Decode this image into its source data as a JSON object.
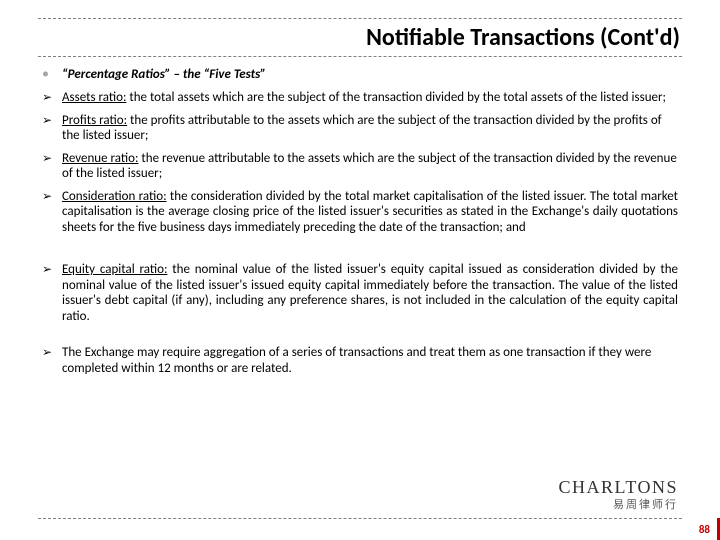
{
  "accent_color": "#c00000",
  "title": "Notifiable Transactions (Cont'd)",
  "bullets": [
    {
      "marker": "dot",
      "style": "bi",
      "lead": "",
      "body": "“Percentage Ratios” – the “Five Tests”"
    },
    {
      "marker": "arrow",
      "style": "",
      "lead": "Assets ratio:",
      "body": " the total assets which are the subject of the transaction divided by the total assets of the listed issuer;"
    },
    {
      "marker": "arrow",
      "style": "",
      "lead": "Profits ratio:",
      "body": " the profits attributable to the assets which are the subject of the transaction divided by the profits of the listed issuer;"
    },
    {
      "marker": "arrow",
      "style": "",
      "lead": "Revenue ratio:",
      "body": " the revenue attributable to the assets which are the subject of the transaction divided by the revenue of the listed issuer;"
    },
    {
      "marker": "arrow",
      "style": "justify",
      "lead": "Consideration ratio:",
      "body": " the consideration divided by the total market capitalisation of the listed issuer. The total market capitalisation is the average closing price of the listed issuer's securities as stated in the Exchange's daily quotations sheets for the five business days immediately preceding the date of the transaction; and"
    },
    {
      "marker": "arrow",
      "style": "justify",
      "lead": "Equity capital ratio:",
      "body": " the nominal value of the listed issuer's equity capital issued as consideration divided by the nominal value of the listed issuer's issued equity capital immediately before the transaction. The value of the listed issuer's debt capital (if any), including any preference shares, is not included in the calculation of the equity capital ratio."
    },
    {
      "marker": "arrow",
      "style": "",
      "lead": "",
      "body": "The Exchange may require aggregation of a series of transactions and treat them as one transaction if they were completed within 12 months or are related."
    }
  ],
  "logo_main": "CHARLTONS",
  "logo_sub": "易周律师行",
  "page_number": "88",
  "glyph_dot": "•",
  "glyph_arrow": "➢"
}
